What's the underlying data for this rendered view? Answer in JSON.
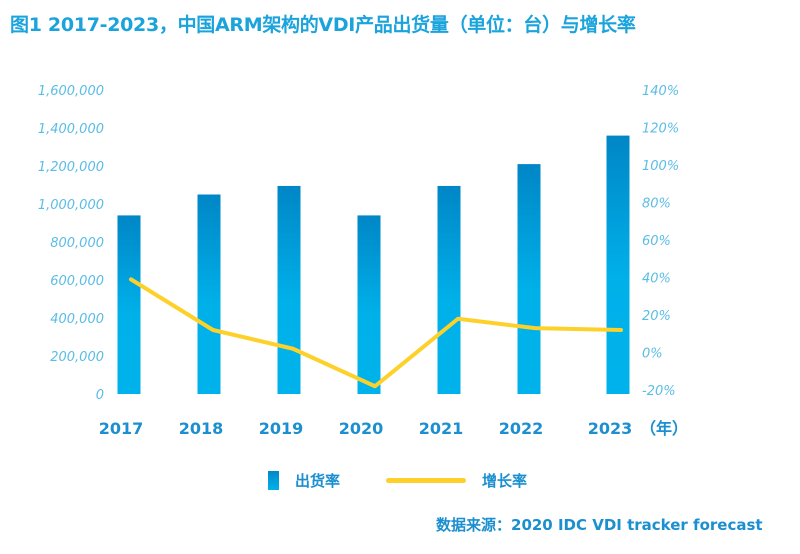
{
  "chart_data": {
    "type": "bar+line",
    "title": "图1 2017-2023，中国ARM架构的VDI产品出货量（单位：台）与增长率",
    "categories": [
      "2017",
      "2018",
      "2019",
      "2020",
      "2021",
      "2022",
      "2023"
    ],
    "x_unit": "（年）",
    "series": [
      {
        "name": "出货率",
        "type": "bar",
        "axis": "left",
        "color": "#00a6e2",
        "values": [
          940000,
          1050000,
          1095000,
          940000,
          1095000,
          1210000,
          1360000
        ]
      },
      {
        "name": "增长率",
        "type": "line",
        "axis": "right",
        "color": "#fdd12a",
        "values": [
          39,
          12,
          2,
          -18,
          18,
          13,
          12
        ]
      }
    ],
    "y_left": {
      "ylim": [
        0,
        1600000
      ],
      "ticks": [
        "0",
        "200,000",
        "400,000",
        "600,000",
        "800,000",
        "1,000,000",
        "1,200,000",
        "1,400,000",
        "1,600,000"
      ]
    },
    "y_right": {
      "ylim": [
        -20,
        140
      ],
      "ticks": [
        "-20%",
        "0%",
        "20%",
        "40%",
        "60%",
        "80%",
        "100%",
        "120%",
        "140%"
      ]
    },
    "grid": false,
    "legend": "bottom",
    "source": "数据来源：2020 IDC VDI tracker forecast"
  }
}
